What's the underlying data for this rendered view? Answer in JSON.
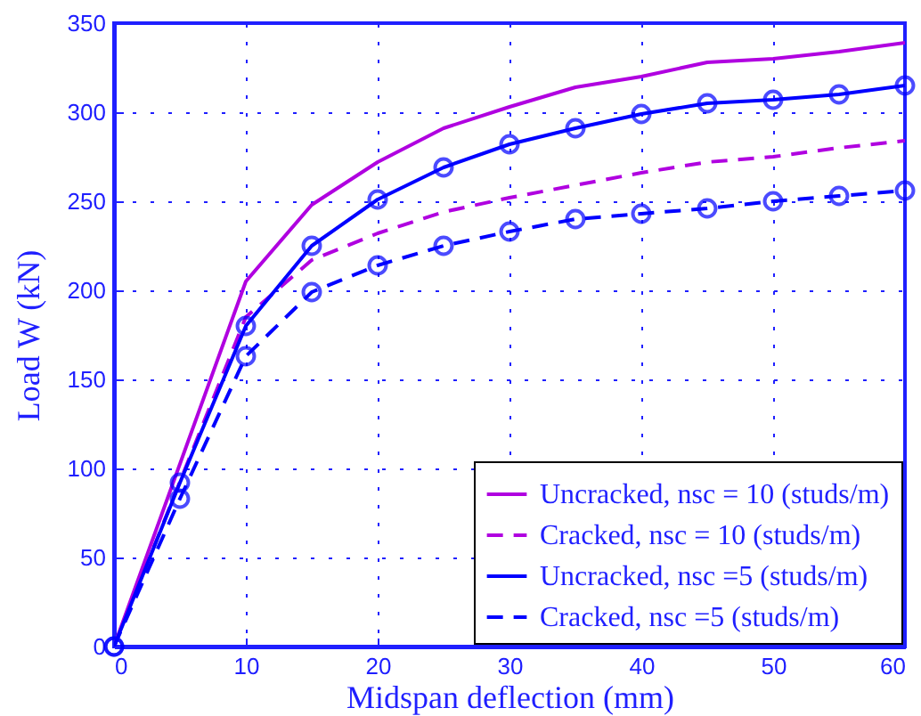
{
  "chart_data": {
    "type": "line",
    "xlabel": "Midspan deflection (mm)",
    "ylabel": "Load W (kN)",
    "xlim": [
      0,
      60
    ],
    "xticks": [
      0,
      10,
      20,
      30,
      40,
      50,
      60
    ],
    "ylim": [
      0,
      350
    ],
    "yticks": [
      0,
      50,
      100,
      150,
      200,
      250,
      300,
      350
    ],
    "grid": true,
    "legend": "bottom right",
    "series": [
      {
        "name": "Uncracked, nsc = 10 (studs/m)",
        "color": "#b000e0",
        "line_style": "solid",
        "marker": "none",
        "x": [
          0,
          10,
          15,
          20,
          25,
          30,
          35,
          40,
          45,
          50,
          55,
          60
        ],
        "values": [
          0,
          205,
          248,
          272,
          291,
          303,
          314,
          320,
          328,
          330,
          334,
          339
        ]
      },
      {
        "name": "Cracked, nsc = 10 (studs/m)",
        "color": "#b000e0",
        "line_style": "dashed",
        "marker": "none",
        "x": [
          0,
          10,
          15,
          20,
          25,
          30,
          35,
          40,
          45,
          50,
          55,
          60
        ],
        "values": [
          0,
          185,
          217,
          232,
          244,
          252,
          259,
          266,
          272,
          275,
          280,
          284
        ]
      },
      {
        "name": "Uncracked, nsc =5 (studs/m)",
        "color": "#0000ff",
        "line_style": "solid",
        "marker": "circle",
        "x": [
          0,
          5,
          10,
          15,
          20,
          25,
          30,
          35,
          40,
          45,
          50,
          55,
          60
        ],
        "values": [
          0,
          92,
          180,
          225,
          251,
          269,
          282,
          291,
          299,
          305,
          307,
          310,
          315
        ]
      },
      {
        "name": "Cracked, nsc =5 (studs/m)",
        "color": "#0000ff",
        "line_style": "dashed",
        "marker": "circle",
        "x": [
          0,
          5,
          10,
          15,
          20,
          25,
          30,
          35,
          40,
          45,
          50,
          55,
          60
        ],
        "values": [
          0,
          83,
          163,
          199,
          214,
          225,
          233,
          240,
          243,
          246,
          250,
          253,
          256
        ]
      }
    ]
  }
}
